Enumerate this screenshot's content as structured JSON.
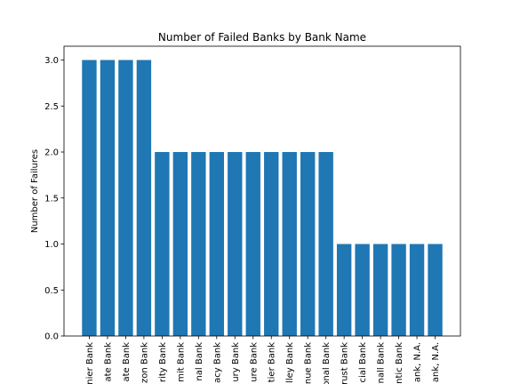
{
  "chart_data": {
    "type": "bar",
    "title": "Number of Failed Banks by Bank Name",
    "xlabel": "",
    "ylabel": "Number of Failures",
    "ylim": [
      0,
      3.15
    ],
    "yticks": [
      "0.0",
      "0.5",
      "1.0",
      "1.5",
      "2.0",
      "2.5",
      "3.0"
    ],
    "bar_color": "#1f77b4",
    "grid": false,
    "categories": [
      "nier Bank",
      "ate Bank",
      "ate Bank",
      "zon Bank",
      "rity Bank",
      "mit Bank",
      "nal Bank",
      "acy Bank",
      "ury Bank",
      "ure Bank",
      "tier Bank",
      "lley Bank",
      "nue Bank",
      "onal Bank",
      "rust Bank",
      "cial Bank",
      "nall Bank",
      "ntic Bank",
      "ank, N.A.",
      "ank, N.A."
    ],
    "values": [
      3,
      3,
      3,
      3,
      2,
      2,
      2,
      2,
      2,
      2,
      2,
      2,
      2,
      2,
      1,
      1,
      1,
      1,
      1,
      1
    ]
  }
}
